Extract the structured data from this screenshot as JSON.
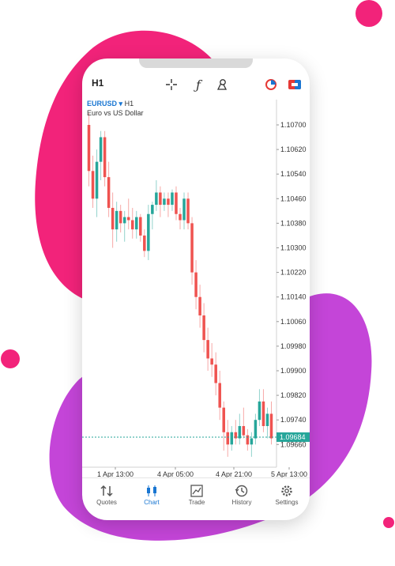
{
  "toolbar": {
    "timeframe": "H1",
    "icons": [
      "crosshair-icon",
      "function-icon",
      "objects-icon",
      "one-click-icon",
      "trade-icon"
    ]
  },
  "symbol": {
    "name": "EURUSD",
    "timeframe": "H1",
    "description": "Euro vs US Dollar"
  },
  "chart_data": {
    "type": "candlestick",
    "y_ticks": [
      "1.10700",
      "1.10620",
      "1.10540",
      "1.10460",
      "1.10380",
      "1.10300",
      "1.10220",
      "1.10140",
      "1.10060",
      "1.09980",
      "1.09900",
      "1.09820",
      "1.09740",
      "1.09660"
    ],
    "x_ticks": [
      "1 Apr 13:00",
      "4 Apr 05:00",
      "4 Apr 21:00",
      "5 Apr 13:00"
    ],
    "current_price": "1.09684",
    "ylim": [
      1.0962,
      1.1074
    ],
    "colors": {
      "bull": "#26a69a",
      "bear": "#ef5350",
      "price_line": "#26a69a"
    },
    "candles": [
      [
        1.107,
        1.1074,
        1.105,
        1.1055
      ],
      [
        1.1055,
        1.106,
        1.1043,
        1.1046
      ],
      [
        1.1046,
        1.1062,
        1.104,
        1.1058
      ],
      [
        1.1058,
        1.1068,
        1.1052,
        1.1066
      ],
      [
        1.1066,
        1.1068,
        1.105,
        1.1053
      ],
      [
        1.1053,
        1.1058,
        1.104,
        1.1043
      ],
      [
        1.1043,
        1.1048,
        1.103,
        1.1036
      ],
      [
        1.1036,
        1.1045,
        1.1032,
        1.1042
      ],
      [
        1.1042,
        1.1044,
        1.1035,
        1.1038
      ],
      [
        1.1038,
        1.1042,
        1.1032,
        1.104
      ],
      [
        1.104,
        1.1046,
        1.1036,
        1.1039
      ],
      [
        1.1039,
        1.1043,
        1.1033,
        1.1036
      ],
      [
        1.1036,
        1.1042,
        1.1033,
        1.104
      ],
      [
        1.104,
        1.1041,
        1.1032,
        1.1034
      ],
      [
        1.1034,
        1.1036,
        1.1027,
        1.1029
      ],
      [
        1.1029,
        1.1044,
        1.1026,
        1.1041
      ],
      [
        1.1041,
        1.1045,
        1.1036,
        1.1044
      ],
      [
        1.1044,
        1.1052,
        1.1042,
        1.1048
      ],
      [
        1.1048,
        1.105,
        1.104,
        1.1044
      ],
      [
        1.1044,
        1.1048,
        1.1042,
        1.1046
      ],
      [
        1.1046,
        1.1048,
        1.104,
        1.1044
      ],
      [
        1.1044,
        1.1049,
        1.1042,
        1.1048
      ],
      [
        1.1048,
        1.105,
        1.1039,
        1.1041
      ],
      [
        1.1041,
        1.1043,
        1.1036,
        1.1039
      ],
      [
        1.1039,
        1.1048,
        1.1036,
        1.1046
      ],
      [
        1.1046,
        1.1048,
        1.1036,
        1.1038
      ],
      [
        1.1038,
        1.104,
        1.1018,
        1.1022
      ],
      [
        1.1022,
        1.1026,
        1.101,
        1.1014
      ],
      [
        1.1014,
        1.1018,
        1.1004,
        1.1008
      ],
      [
        1.1008,
        1.1012,
        1.0996,
        1.1
      ],
      [
        1.1,
        1.1004,
        1.099,
        1.0994
      ],
      [
        1.0994,
        1.0999,
        1.0988,
        1.0992
      ],
      [
        1.0992,
        1.0996,
        1.0982,
        1.0986
      ],
      [
        1.0986,
        1.099,
        1.0974,
        1.0978
      ],
      [
        1.0978,
        1.098,
        1.0964,
        1.097
      ],
      [
        1.097,
        1.0974,
        1.0962,
        1.0966
      ],
      [
        1.0966,
        1.0972,
        1.0964,
        1.097
      ],
      [
        1.097,
        1.0974,
        1.0966,
        1.0968
      ],
      [
        1.0968,
        1.0976,
        1.0966,
        1.0972
      ],
      [
        1.0972,
        1.0978,
        1.0968,
        1.0969
      ],
      [
        1.0969,
        1.0971,
        1.0964,
        1.0966
      ],
      [
        1.0966,
        1.097,
        1.0962,
        1.0968
      ],
      [
        1.0968,
        1.0976,
        1.0966,
        1.0974
      ],
      [
        1.0974,
        1.0984,
        1.0972,
        1.098
      ],
      [
        1.098,
        1.0984,
        1.097,
        1.0972
      ],
      [
        1.0972,
        1.0978,
        1.0968,
        1.0976
      ],
      [
        1.0976,
        1.098,
        1.0966,
        1.0968
      ]
    ]
  },
  "nav": [
    {
      "label": "Quotes",
      "icon": "quotes-icon",
      "active": false
    },
    {
      "label": "Chart",
      "icon": "chart-icon",
      "active": true
    },
    {
      "label": "Trade",
      "icon": "trade-chart-icon",
      "active": false
    },
    {
      "label": "History",
      "icon": "history-icon",
      "active": false
    },
    {
      "label": "Settings",
      "icon": "settings-icon",
      "active": false
    }
  ]
}
